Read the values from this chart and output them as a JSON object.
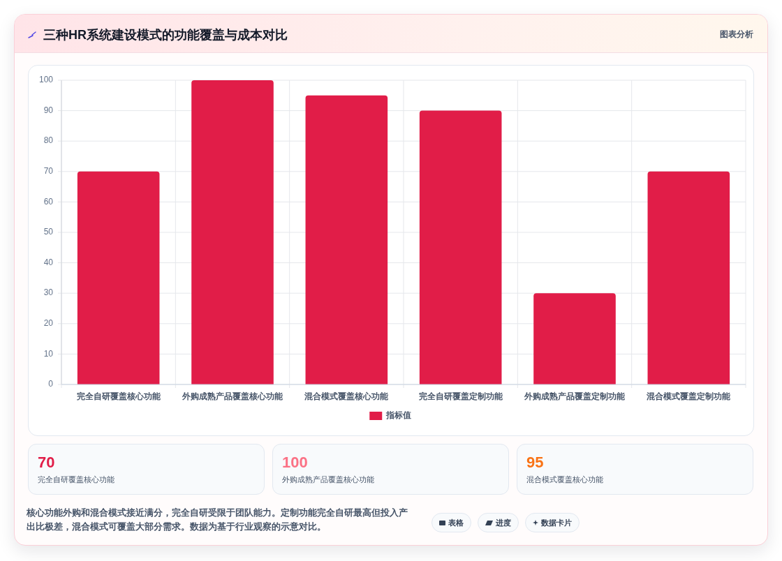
{
  "chart_data": [
    {
      "type": "bar",
      "title": "三种HR系统建设模式的功能覆盖与成本对比",
      "categories": [
        "完全自研覆盖核心功能",
        "外购成熟产品覆盖核心功能",
        "混合模式覆盖核心功能",
        "完全自研覆盖定制功能",
        "外购成熟产品覆盖定制功能",
        "混合模式覆盖定制功能"
      ],
      "series": [
        {
          "name": "指标值",
          "color": "#e11d48",
          "values": [
            70,
            100,
            95,
            90,
            30,
            70
          ]
        }
      ],
      "ylim": [
        0,
        100
      ],
      "yticks": [
        0,
        10,
        20,
        30,
        40,
        50,
        60,
        70,
        80,
        90,
        100
      ],
      "grid": true,
      "legend": "bottom",
      "annotations": [
        "图表分析"
      ]
    },
    {
      "type": "other",
      "annotations": [
        "70",
        "完全自研覆盖核心功能",
        "100",
        "外购成熟产品覆盖核心功能",
        "95",
        "混合模式覆盖核心功能",
        "核心功能外购和混合模式接近满分，完全自研受限于团队能力。定制功能完全自研最高但投入产出比极差，混合模式可覆盖大部分需求。数据为基于行业观察的示意对比。",
        "表格",
        "进度",
        "数据卡片"
      ]
    }
  ]
}
